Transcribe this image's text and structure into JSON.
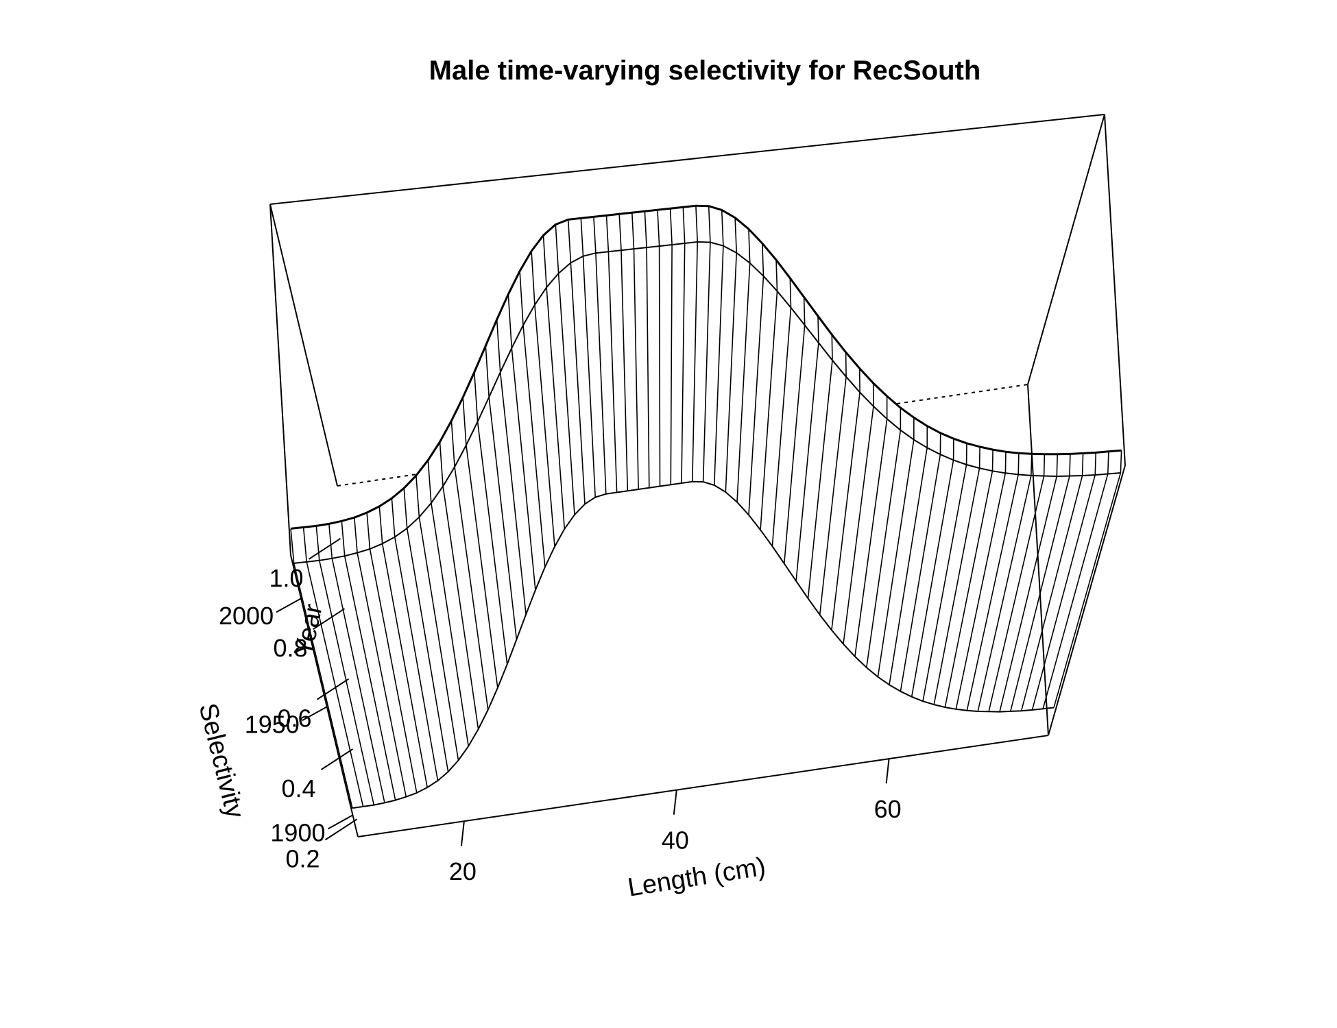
{
  "chart_data": {
    "type": "surface",
    "title": "Male time-varying selectivity for RecSouth",
    "xlabel": "Length (cm)",
    "ylabel": "Year",
    "zlabel": "Selectivity",
    "x_ticks": [
      "20",
      "40",
      "60"
    ],
    "y_ticks": [
      "1900",
      "1950",
      "2000"
    ],
    "z_ticks": [
      "0.2",
      "0.4",
      "0.6",
      "0.8",
      "1.0"
    ],
    "xlim": [
      10,
      75
    ],
    "ylim": [
      1890,
      2020
    ],
    "zlim": [
      0.15,
      1.15
    ],
    "x": [
      10,
      11,
      12,
      13,
      14,
      15,
      16,
      17,
      18,
      19,
      20,
      21,
      22,
      23,
      24,
      25,
      26,
      27,
      28,
      29,
      30,
      31,
      32,
      33,
      34,
      35,
      36,
      37,
      38,
      39,
      40,
      41,
      42,
      43,
      44,
      45,
      46,
      47,
      48,
      49,
      50,
      51,
      52,
      53,
      54,
      55,
      56,
      57,
      58,
      59,
      60,
      61,
      62,
      63,
      64,
      65,
      66,
      67,
      68,
      69,
      70,
      71,
      72,
      73,
      74,
      75
    ],
    "years": [
      1900,
      2013,
      2016
    ],
    "series": [
      {
        "year": 1900,
        "values": [
          0.17,
          0.17,
          0.17,
          0.172,
          0.175,
          0.18,
          0.187,
          0.198,
          0.213,
          0.234,
          0.262,
          0.298,
          0.342,
          0.393,
          0.451,
          0.514,
          0.58,
          0.647,
          0.712,
          0.773,
          0.827,
          0.873,
          0.909,
          0.935,
          0.95,
          0.955,
          0.955,
          0.955,
          0.955,
          0.955,
          0.955,
          0.955,
          0.955,
          0.955,
          0.95,
          0.936,
          0.912,
          0.879,
          0.838,
          0.791,
          0.74,
          0.686,
          0.632,
          0.578,
          0.527,
          0.479,
          0.435,
          0.395,
          0.359,
          0.328,
          0.301,
          0.278,
          0.258,
          0.241,
          0.227,
          0.215,
          0.205,
          0.197,
          0.19,
          0.185,
          0.18,
          0.177,
          0.174,
          0.172,
          0.171,
          0.17
        ]
      },
      {
        "year": 2013,
        "values": [
          0.17,
          0.17,
          0.17,
          0.172,
          0.175,
          0.18,
          0.187,
          0.198,
          0.213,
          0.234,
          0.262,
          0.298,
          0.342,
          0.393,
          0.451,
          0.514,
          0.58,
          0.647,
          0.712,
          0.773,
          0.827,
          0.873,
          0.909,
          0.935,
          0.95,
          0.955,
          0.955,
          0.955,
          0.955,
          0.955,
          0.955,
          0.955,
          0.955,
          0.955,
          0.95,
          0.936,
          0.912,
          0.879,
          0.838,
          0.791,
          0.74,
          0.686,
          0.632,
          0.578,
          0.527,
          0.479,
          0.435,
          0.395,
          0.359,
          0.328,
          0.301,
          0.278,
          0.258,
          0.241,
          0.227,
          0.215,
          0.205,
          0.197,
          0.19,
          0.185,
          0.18,
          0.177,
          0.174,
          0.172,
          0.171,
          0.17
        ]
      },
      {
        "year": 2016,
        "values": [
          0.25,
          0.25,
          0.25,
          0.252,
          0.256,
          0.262,
          0.272,
          0.286,
          0.305,
          0.33,
          0.362,
          0.402,
          0.45,
          0.506,
          0.569,
          0.637,
          0.708,
          0.779,
          0.847,
          0.909,
          0.962,
          1.003,
          1.03,
          1.04,
          1.04,
          1.04,
          1.04,
          1.04,
          1.04,
          1.04,
          1.04,
          1.04,
          1.04,
          1.04,
          1.035,
          1.02,
          0.994,
          0.958,
          0.913,
          0.862,
          0.806,
          0.748,
          0.69,
          0.633,
          0.579,
          0.529,
          0.483,
          0.442,
          0.405,
          0.373,
          0.345,
          0.321,
          0.301,
          0.284,
          0.27,
          0.258,
          0.248,
          0.24,
          0.234,
          0.229,
          0.225,
          0.222,
          0.22,
          0.218,
          0.217,
          0.216
        ]
      }
    ],
    "grid": false,
    "legend": "none"
  }
}
